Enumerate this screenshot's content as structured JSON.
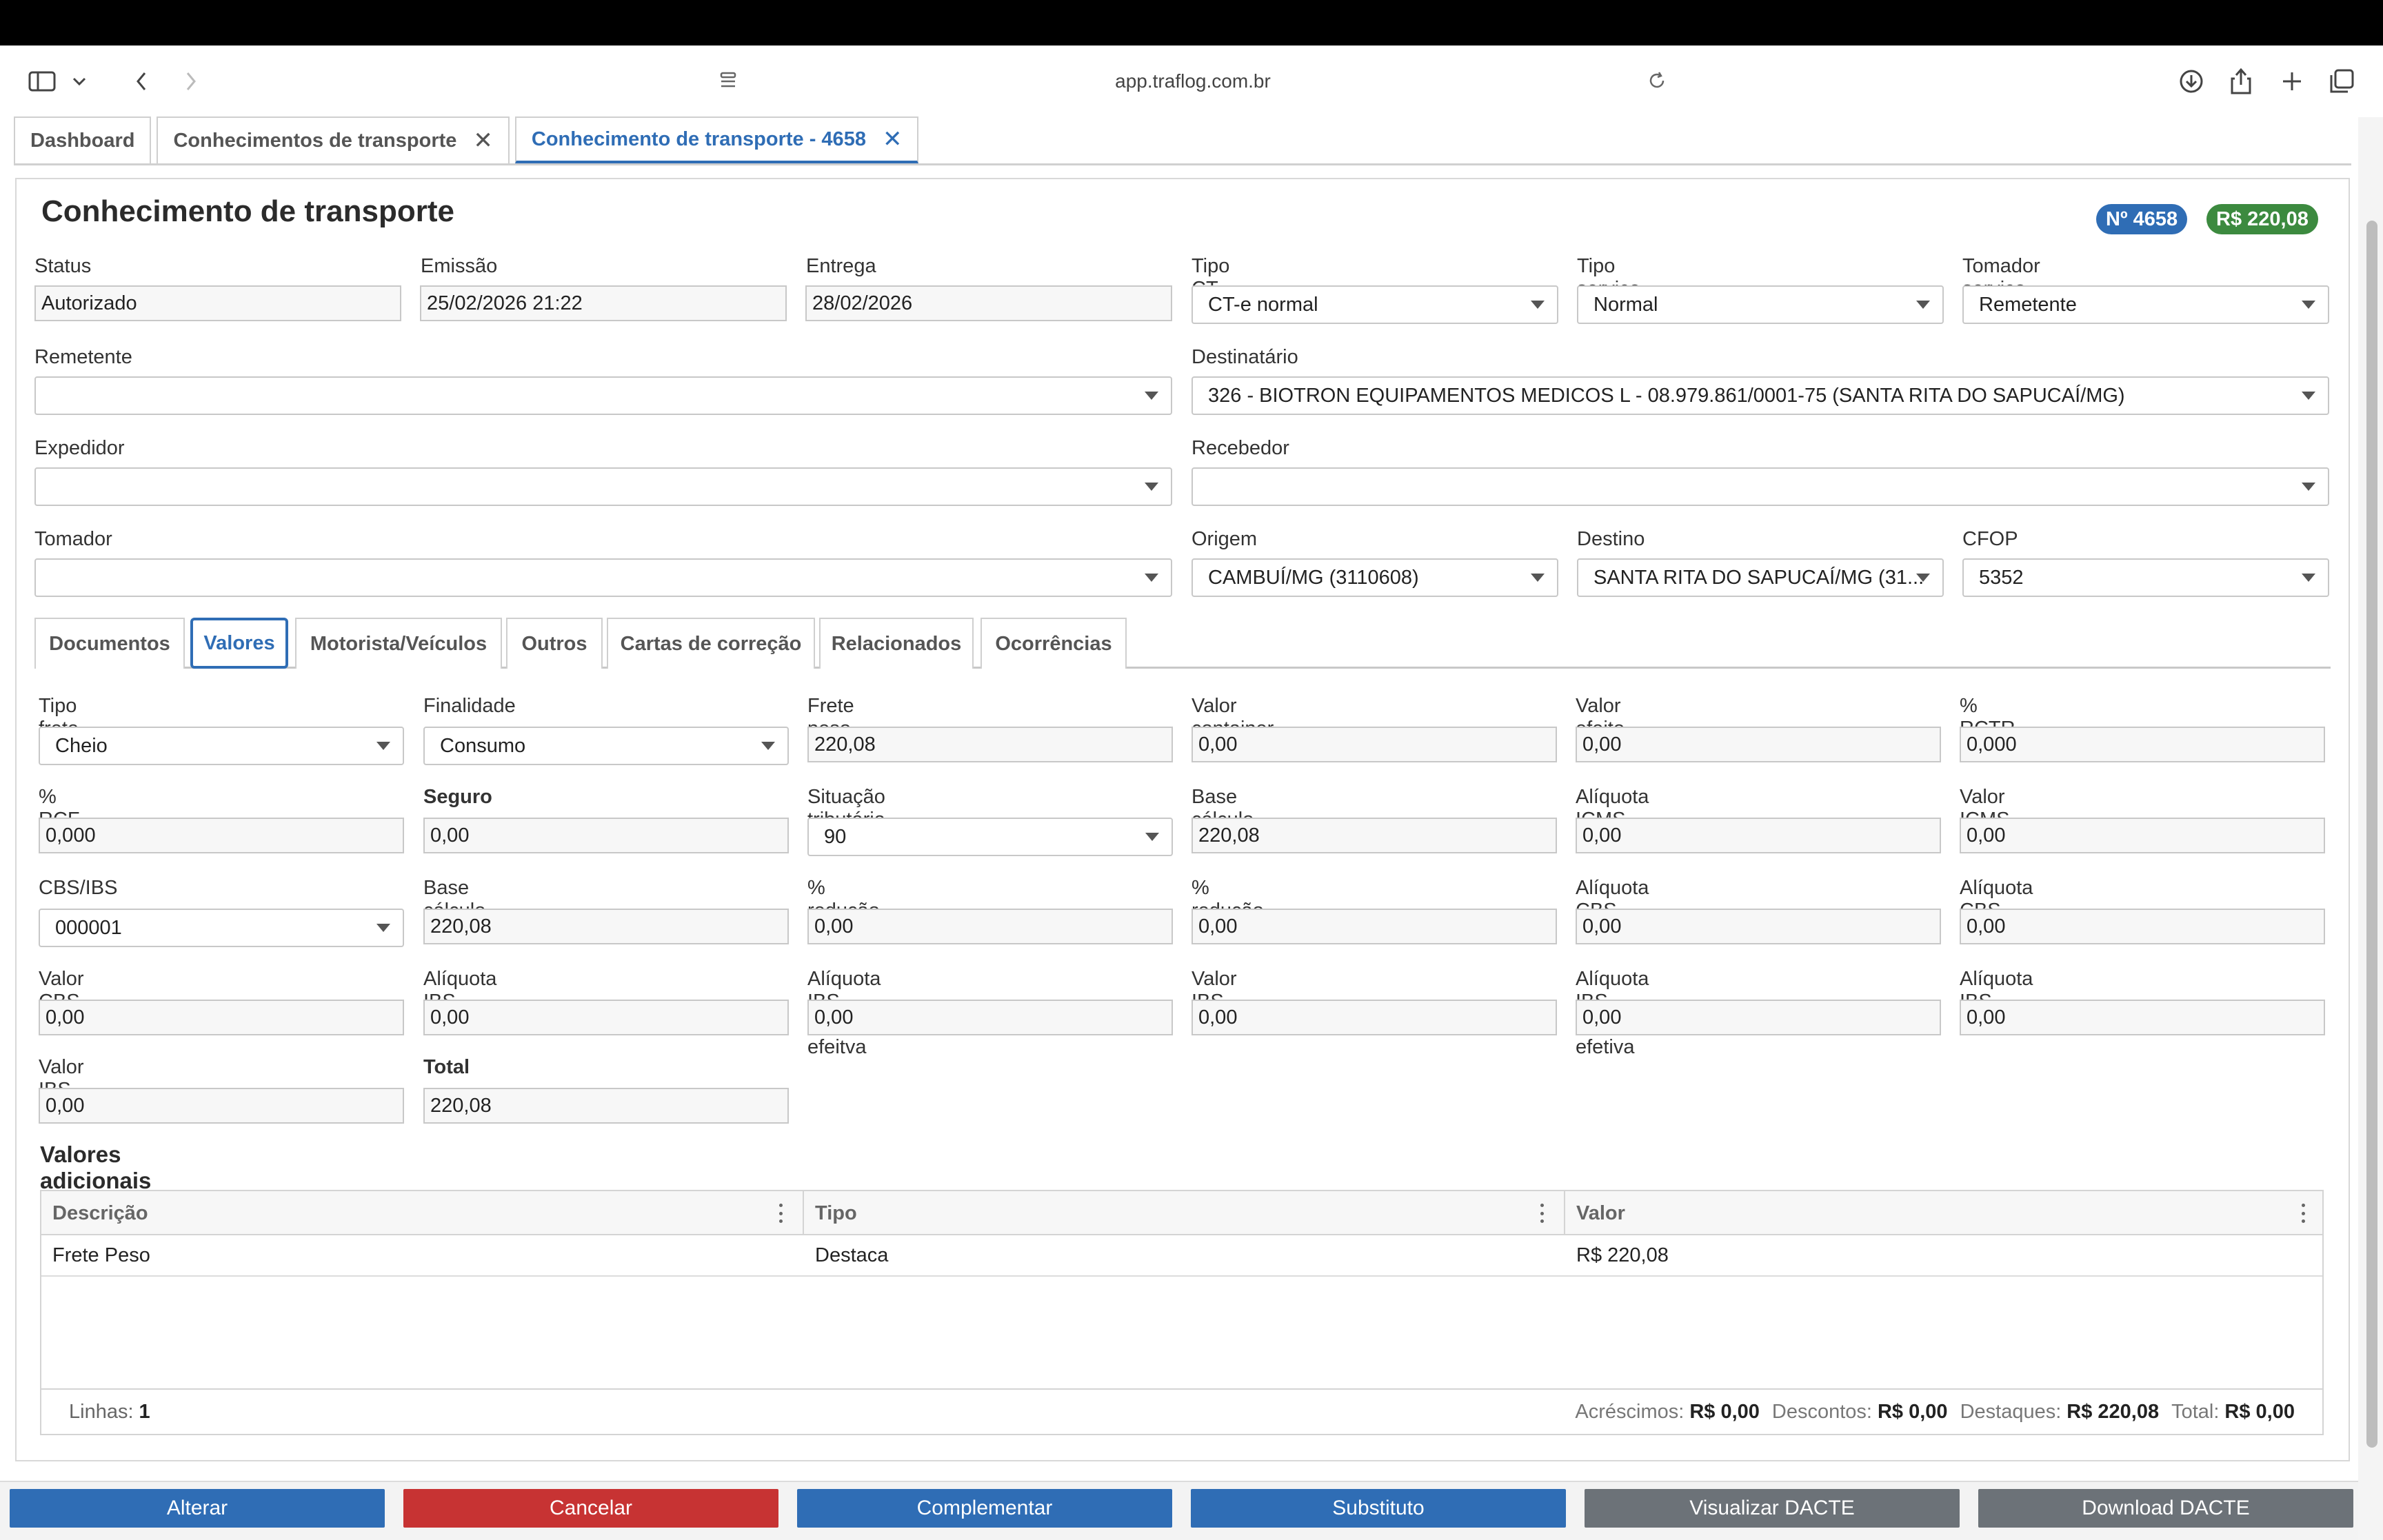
{
  "browser": {
    "url": "app.traflog.com.br",
    "icons": [
      "sidebar-icon",
      "chevron-down-icon",
      "back-icon",
      "forward-icon",
      "page-settings-icon",
      "reload-icon",
      "download-icon",
      "share-icon",
      "new-tab-icon",
      "tabs-overview-icon"
    ]
  },
  "tabs": [
    {
      "label": "Dashboard",
      "closable": false
    },
    {
      "label": "Conhecimentos de transporte",
      "closable": true
    },
    {
      "label": "Conhecimento de transporte - 4658",
      "closable": true,
      "active": true
    }
  ],
  "header": {
    "title": "Conhecimento de transporte",
    "badge_number": "Nº 4658",
    "badge_value": "R$ 220,08"
  },
  "form": {
    "status": {
      "label": "Status",
      "value": "Autorizado"
    },
    "emissao": {
      "label": "Emissão",
      "value": "25/02/2026 21:22"
    },
    "entrega": {
      "label": "Entrega",
      "value": "28/02/2026"
    },
    "tipo_cte": {
      "label": "Tipo CT-e",
      "value": "CT-e normal"
    },
    "tipo_servico": {
      "label": "Tipo serviço",
      "value": "Normal"
    },
    "tomador_servico": {
      "label": "Tomador serviço",
      "value": "Remetente"
    },
    "remetente": {
      "label": "Remetente",
      "value": ""
    },
    "destinatario": {
      "label": "Destinatário",
      "value": "326 - BIOTRON EQUIPAMENTOS MEDICOS L - 08.979.861/0001-75 (SANTA RITA DO SAPUCAÍ/MG)"
    },
    "expedidor": {
      "label": "Expedidor",
      "value": ""
    },
    "recebedor": {
      "label": "Recebedor",
      "value": ""
    },
    "tomador": {
      "label": "Tomador",
      "value": ""
    },
    "origem": {
      "label": "Origem",
      "value": "CAMBUÍ/MG (3110608)"
    },
    "destino": {
      "label": "Destino",
      "value": "SANTA RITA DO SAPUCAÍ/MG (31..."
    },
    "cfop": {
      "label": "CFOP",
      "value": "5352"
    }
  },
  "inner_tabs": [
    "Documentos",
    "Valores",
    "Motorista/Veículos",
    "Outros",
    "Cartas de correção",
    "Relacionados",
    "Ocorrências"
  ],
  "valores": {
    "tipo_frete": {
      "label": "Tipo frete",
      "value": "Cheio"
    },
    "finalidade": {
      "label": "Finalidade",
      "value": "Consumo"
    },
    "frete_peso": {
      "label": "Frete peso",
      "value": "220,08"
    },
    "valor_container": {
      "label": "Valor container",
      "value": "0,00"
    },
    "valor_efeito_seguro": {
      "label": "Valor efeito seguro",
      "value": "0,00"
    },
    "rctr_c": {
      "label": "% RCTR-C",
      "value": "0,000"
    },
    "rcf_dc": {
      "label": "% RCF-DC",
      "value": "0,000"
    },
    "seguro": {
      "label": "Seguro",
      "value": "0,00"
    },
    "situacao_tributaria": {
      "label": "Situação tributária",
      "value": "90"
    },
    "base_calculo_icms": {
      "label": "Base cálculo ICMS",
      "value": "220,08"
    },
    "aliquota_icms": {
      "label": "Alíquota ICMS",
      "value": "0,00"
    },
    "valor_icms": {
      "label": "Valor ICMS",
      "value": "0,00"
    },
    "cbs_ibs": {
      "label": "CBS/IBS",
      "value": "000001"
    },
    "base_calculo_cbs_ibs": {
      "label": "Base cálculo CBS/IBS",
      "value": "220,08"
    },
    "reducao_cbs": {
      "label": "% redução CBS",
      "value": "0,00"
    },
    "reducao_ibs": {
      "label": "% redução IBS",
      "value": "0,00"
    },
    "aliquota_cbs": {
      "label": "Alíquota CBS",
      "value": "0,00"
    },
    "aliquota_cbs_efetiva": {
      "label": "Alíquota CBS efeitva",
      "value": "0,00"
    },
    "valor_cbs": {
      "label": "Valor CBS",
      "value": "0,00"
    },
    "aliquota_ibs_estado": {
      "label": "Alíquota IBS estado",
      "value": "0,00"
    },
    "aliquota_ibs_estado_efetiva": {
      "label": "Alíquota IBS estado efeitva",
      "value": "0,00"
    },
    "valor_ibs_estado": {
      "label": "Valor IBS estado",
      "value": "0,00"
    },
    "aliquota_ibs_cidade_efetiva": {
      "label": "Alíquota IBS cidade efetiva",
      "value": "0,00"
    },
    "aliquota_ibs_cidade": {
      "label": "Alíquota IBS cidade",
      "value": "0,00"
    },
    "valor_ibs_cidade": {
      "label": "Valor IBS cidade",
      "value": "0,00"
    },
    "total": {
      "label": "Total",
      "value": "220,08"
    }
  },
  "valores_adicionais": {
    "title": "Valores adicionais",
    "columns": [
      "Descrição",
      "Tipo",
      "Valor"
    ],
    "rows": [
      {
        "descricao": "Frete Peso",
        "tipo": "Destaca",
        "valor": "R$ 220,08"
      }
    ],
    "footer": {
      "linhas_label": "Linhas:",
      "linhas_value": "1",
      "acrescimos_label": "Acréscimos:",
      "acrescimos_value": "R$ 0,00",
      "descontos_label": "Descontos:",
      "descontos_value": "R$ 0,00",
      "destaques_label": "Destaques:",
      "destaques_value": "R$ 220,08",
      "total_label": "Total:",
      "total_value": "R$ 0,00"
    }
  },
  "actions": {
    "alterar": "Alterar",
    "cancelar": "Cancelar",
    "complementar": "Complementar",
    "substituto": "Substituto",
    "visualizar_dacte": "Visualizar DACTE",
    "download_dacte": "Download DACTE"
  },
  "colors": {
    "primary": "#2f6db5",
    "danger": "#c73333",
    "secondary": "#6c7278",
    "success": "#3c8a3f"
  }
}
